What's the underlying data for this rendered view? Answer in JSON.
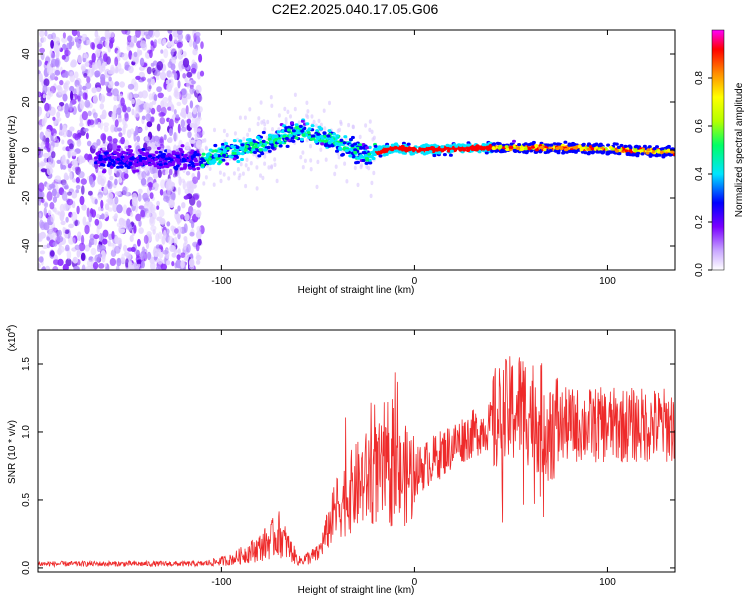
{
  "title": "C2E2.2025.040.17.05.G06",
  "chart_data": [
    {
      "type": "heatmap",
      "title": "C2E2.2025.040.17.05.G06",
      "xlabel": "Height of straight line (km)",
      "ylabel": "Frequency (Hz)",
      "xlim": [
        -195,
        135
      ],
      "ylim": [
        -50,
        50
      ],
      "x_ticks": [
        -100,
        0,
        100
      ],
      "y_ticks": [
        -40,
        -20,
        0,
        20,
        40
      ],
      "colorbar": {
        "label": "Normalized spectral amplitude",
        "range": [
          0,
          1
        ],
        "ticks": [
          "0.0",
          "0.2",
          "0.4",
          "0.6",
          "0.8"
        ],
        "colors": [
          "#ffffff",
          "#c9a7ff",
          "#7a00ff",
          "#0000ff",
          "#00e5ff",
          "#00ff66",
          "#b4ff00",
          "#ffff00",
          "#ff8c00",
          "#ff0000",
          "#ff00ff"
        ]
      },
      "ridge": [
        {
          "x": -110,
          "y": -4
        },
        {
          "x": -80,
          "y": 2
        },
        {
          "x": -60,
          "y": 8
        },
        {
          "x": -50,
          "y": 6
        },
        {
          "x": -35,
          "y": 2
        },
        {
          "x": -25,
          "y": -2
        },
        {
          "x": -10,
          "y": 1
        },
        {
          "x": 0,
          "y": 0
        },
        {
          "x": 40,
          "y": 1
        },
        {
          "x": 80,
          "y": 1
        },
        {
          "x": 110,
          "y": 0
        },
        {
          "x": 135,
          "y": -1
        }
      ]
    },
    {
      "type": "line",
      "xlabel": "Height of straight line (km)",
      "ylabel": "SNR (10 * v/v)",
      "y_scale_label": "(x10",
      "y_scale_exp": "4",
      "xlim": [
        -195,
        135
      ],
      "ylim": [
        -0.03,
        1.75
      ],
      "x_ticks": [
        -100,
        0,
        100
      ],
      "y_ticks": [
        "0.0",
        "0.5",
        "1.0",
        "1.5"
      ],
      "color": "#ee2a2a",
      "envelope": [
        {
          "x": -195,
          "y": 0.03
        },
        {
          "x": -110,
          "y": 0.03
        },
        {
          "x": -95,
          "y": 0.06
        },
        {
          "x": -80,
          "y": 0.15
        },
        {
          "x": -70,
          "y": 0.25
        },
        {
          "x": -60,
          "y": 0.05
        },
        {
          "x": -50,
          "y": 0.1
        },
        {
          "x": -40,
          "y": 0.45
        },
        {
          "x": -30,
          "y": 0.6
        },
        {
          "x": -20,
          "y": 0.7
        },
        {
          "x": -10,
          "y": 0.65
        },
        {
          "x": 0,
          "y": 0.7
        },
        {
          "x": 10,
          "y": 0.8
        },
        {
          "x": 25,
          "y": 0.95
        },
        {
          "x": 40,
          "y": 1.05
        },
        {
          "x": 55,
          "y": 1.2
        },
        {
          "x": 70,
          "y": 1.05
        },
        {
          "x": 100,
          "y": 1.05
        },
        {
          "x": 135,
          "y": 1.05
        }
      ]
    }
  ]
}
